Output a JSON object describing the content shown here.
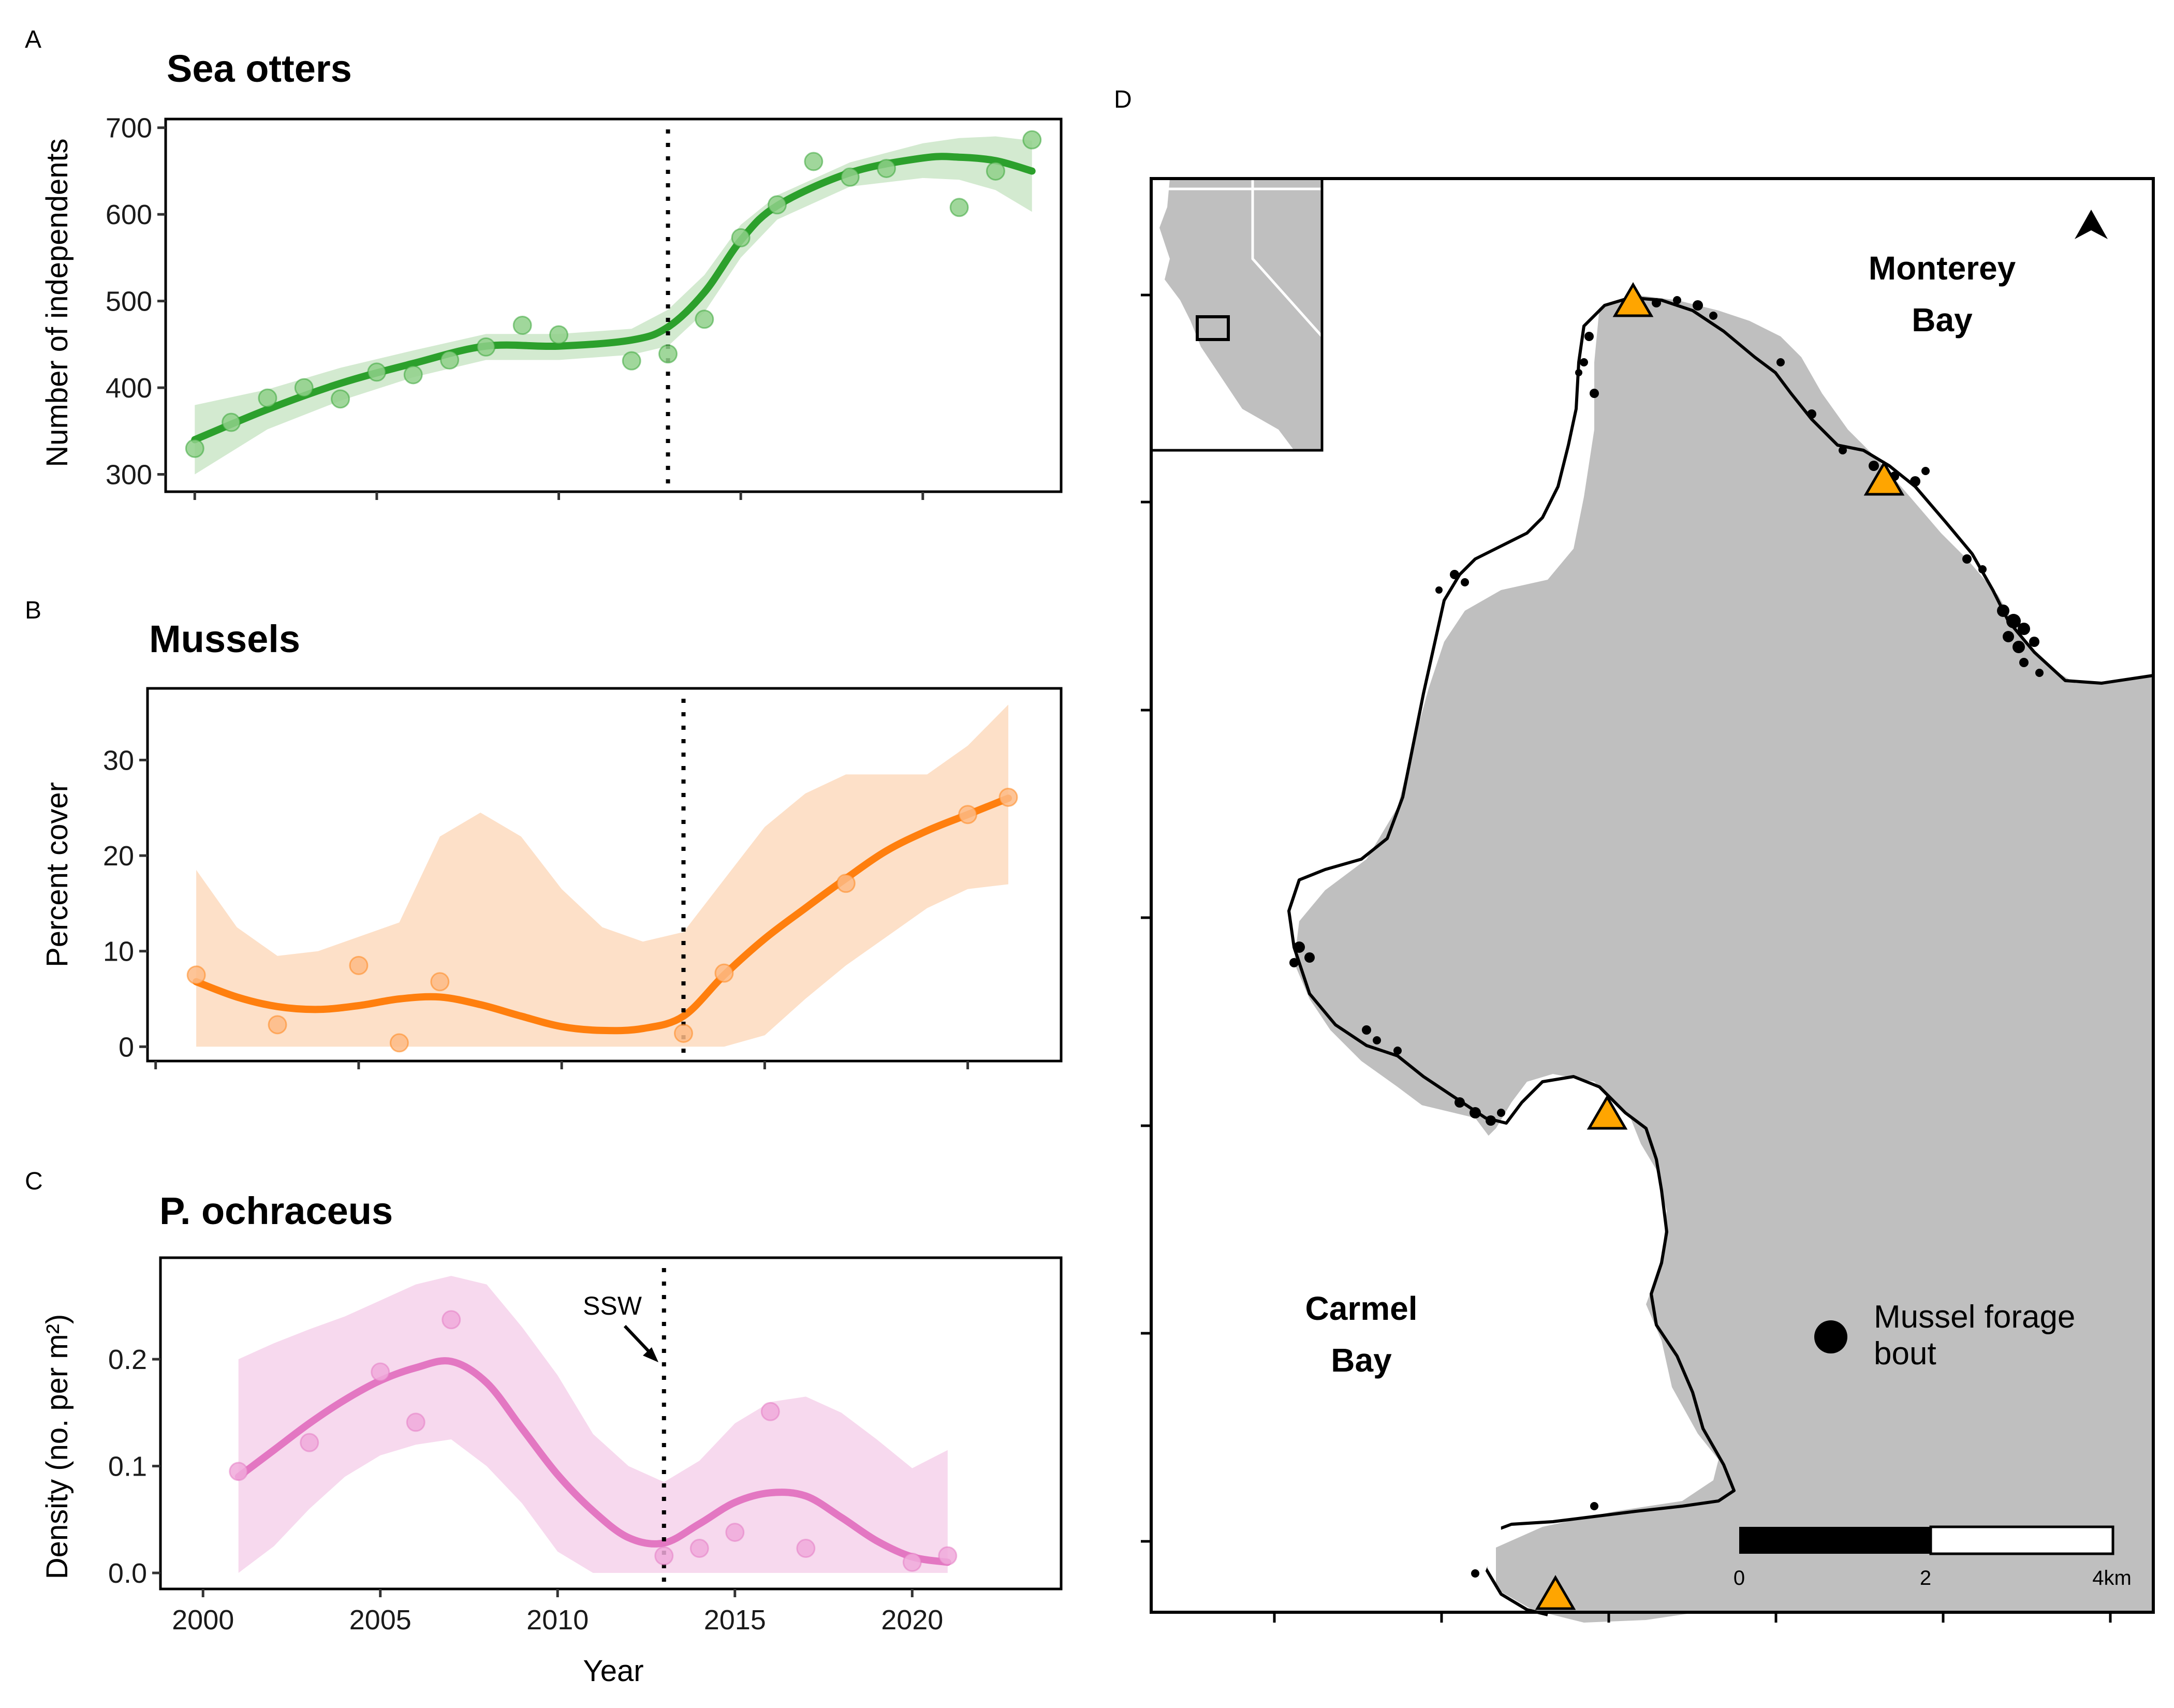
{
  "chart_data": [
    {
      "panel": "A",
      "type": "scatter",
      "title": "Sea otters",
      "xlabel": "",
      "ylabel": "Number of independents",
      "xlim": [
        1999.2,
        2023.8
      ],
      "ylim": [
        280,
        710
      ],
      "yticks": [
        300,
        400,
        500,
        600,
        700
      ],
      "xticks": [
        2000,
        2005,
        2010,
        2015,
        2020
      ],
      "vline_x": 2013,
      "color": "#2ca02c",
      "points": {
        "x": [
          2000,
          2001,
          2002,
          2003,
          2004,
          2005,
          2006,
          2007,
          2008,
          2009,
          2010,
          2012,
          2013,
          2014,
          2015,
          2016,
          2017,
          2018,
          2019,
          2021,
          2022,
          2023
        ],
        "y": [
          330,
          360,
          388,
          400,
          387,
          418,
          415,
          432,
          447,
          472,
          461,
          431,
          439,
          479,
          573,
          611,
          661,
          643,
          653,
          608,
          650,
          686
        ]
      },
      "fit": {
        "x": [
          2000,
          2002,
          2004,
          2006,
          2008,
          2010,
          2012,
          2013,
          2014,
          2015,
          2016,
          2018,
          2020,
          2021,
          2022,
          2023
        ],
        "y": [
          340,
          375,
          405,
          428,
          448,
          448,
          455,
          470,
          510,
          570,
          610,
          648,
          665,
          666,
          662,
          650
        ]
      },
      "band": {
        "upper": [
          380,
          398,
          423,
          443,
          462,
          462,
          468,
          490,
          530,
          588,
          622,
          660,
          682,
          688,
          690,
          685
        ],
        "lower": [
          300,
          352,
          385,
          412,
          432,
          432,
          438,
          448,
          487,
          550,
          594,
          632,
          642,
          640,
          628,
          603
        ]
      }
    },
    {
      "panel": "B",
      "type": "scatter",
      "title": "Mussels",
      "xlabel": "",
      "ylabel": "Percent cover",
      "xlim": [
        1999.8,
        2022.3
      ],
      "ylim": [
        -1.5,
        37.5
      ],
      "yticks": [
        0,
        10,
        20,
        30
      ],
      "xticks": [
        2000,
        2005,
        2010,
        2015,
        2020
      ],
      "vline_x": 2013,
      "color": "#ff7f0e",
      "points": {
        "x": [
          2001,
          2003,
          2005,
          2006,
          2007,
          2013,
          2014,
          2017,
          2020,
          2021
        ],
        "y": [
          7.5,
          2.3,
          8.5,
          0.4,
          6.8,
          1.4,
          7.7,
          17.1,
          24.3,
          26.1
        ]
      },
      "fit": {
        "x": [
          2001,
          2002,
          2003,
          2004,
          2005,
          2006,
          2007,
          2008,
          2009,
          2010,
          2011,
          2012,
          2013,
          2014,
          2015,
          2016,
          2017,
          2018,
          2019,
          2020,
          2021
        ],
        "y": [
          6.8,
          5.2,
          4.2,
          3.9,
          4.3,
          5.0,
          5.2,
          4.4,
          3.2,
          2.1,
          1.7,
          1.9,
          3.2,
          7.5,
          11.3,
          14.5,
          17.6,
          20.5,
          22.6,
          24.3,
          26.0
        ]
      },
      "band": {
        "upper": [
          18.5,
          12.5,
          9.5,
          10.0,
          11.5,
          13.0,
          22.0,
          24.5,
          22.0,
          16.5,
          12.5,
          11.0,
          12.0,
          17.5,
          23.0,
          26.5,
          28.5,
          28.5,
          28.5,
          31.5,
          35.8
        ],
        "lower": [
          0,
          0,
          0,
          0,
          0,
          0,
          0,
          0,
          0,
          0,
          0,
          0,
          0,
          0,
          1.2,
          5.0,
          8.5,
          11.5,
          14.5,
          16.5,
          17.0
        ]
      }
    },
    {
      "panel": "C",
      "type": "scatter",
      "title": "P. ochraceus",
      "xlabel": "Year",
      "ylabel": "Density (no. per m²)",
      "xlim": [
        1998.8,
        2024.2
      ],
      "ylim": [
        -0.015,
        0.295
      ],
      "yticks": [
        0.0,
        0.1,
        0.2
      ],
      "ytick_labels": [
        "0.0",
        "0.1",
        "0.2"
      ],
      "xticks": [
        2000,
        2005,
        2010,
        2015,
        2020
      ],
      "vline_x": 2013,
      "color": "#e377c2",
      "annotation": "SSW",
      "points": {
        "x": [
          2001,
          2003,
          2005,
          2006,
          2007,
          2013,
          2014,
          2015,
          2016,
          2017,
          2020,
          2021
        ],
        "y": [
          0.095,
          0.122,
          0.188,
          0.141,
          0.237,
          0.016,
          0.023,
          0.038,
          0.151,
          0.023,
          0.01,
          0.016
        ]
      },
      "fit": {
        "x": [
          2001,
          2002,
          2003,
          2004,
          2005,
          2006,
          2007,
          2008,
          2009,
          2010,
          2011,
          2012,
          2013,
          2014,
          2015,
          2016,
          2017,
          2018,
          2019,
          2020,
          2021
        ],
        "y": [
          0.09,
          0.115,
          0.14,
          0.162,
          0.18,
          0.192,
          0.198,
          0.178,
          0.135,
          0.092,
          0.058,
          0.033,
          0.028,
          0.046,
          0.066,
          0.075,
          0.072,
          0.052,
          0.03,
          0.015,
          0.01
        ]
      },
      "band": {
        "upper": [
          0.2,
          0.215,
          0.228,
          0.24,
          0.255,
          0.27,
          0.278,
          0.27,
          0.23,
          0.185,
          0.13,
          0.1,
          0.085,
          0.105,
          0.14,
          0.16,
          0.165,
          0.15,
          0.125,
          0.098,
          0.115
        ],
        "lower": [
          0.0,
          0.025,
          0.06,
          0.09,
          0.11,
          0.12,
          0.125,
          0.1,
          0.065,
          0.02,
          0.0,
          0.0,
          0.0,
          0.0,
          0.0,
          0.0,
          0.0,
          0.0,
          0.0,
          0.0,
          0.0
        ]
      }
    }
  ],
  "panel_letters": {
    "a": "A",
    "b": "B",
    "c": "C",
    "d": "D"
  },
  "map": {
    "labels": {
      "monterey_line1": "Monterey",
      "monterey_line2": "Bay",
      "carmel_line1": "Carmel",
      "carmel_line2": "Bay"
    },
    "legend": {
      "line1": "Mussel forage",
      "line2": "bout"
    },
    "scale_labels": [
      "0",
      "2",
      "4km"
    ],
    "land_color": "#bfbfbf",
    "marker_color": "#ffa500",
    "icons": [
      "north-arrow-icon",
      "triangle-site-icon"
    ]
  }
}
